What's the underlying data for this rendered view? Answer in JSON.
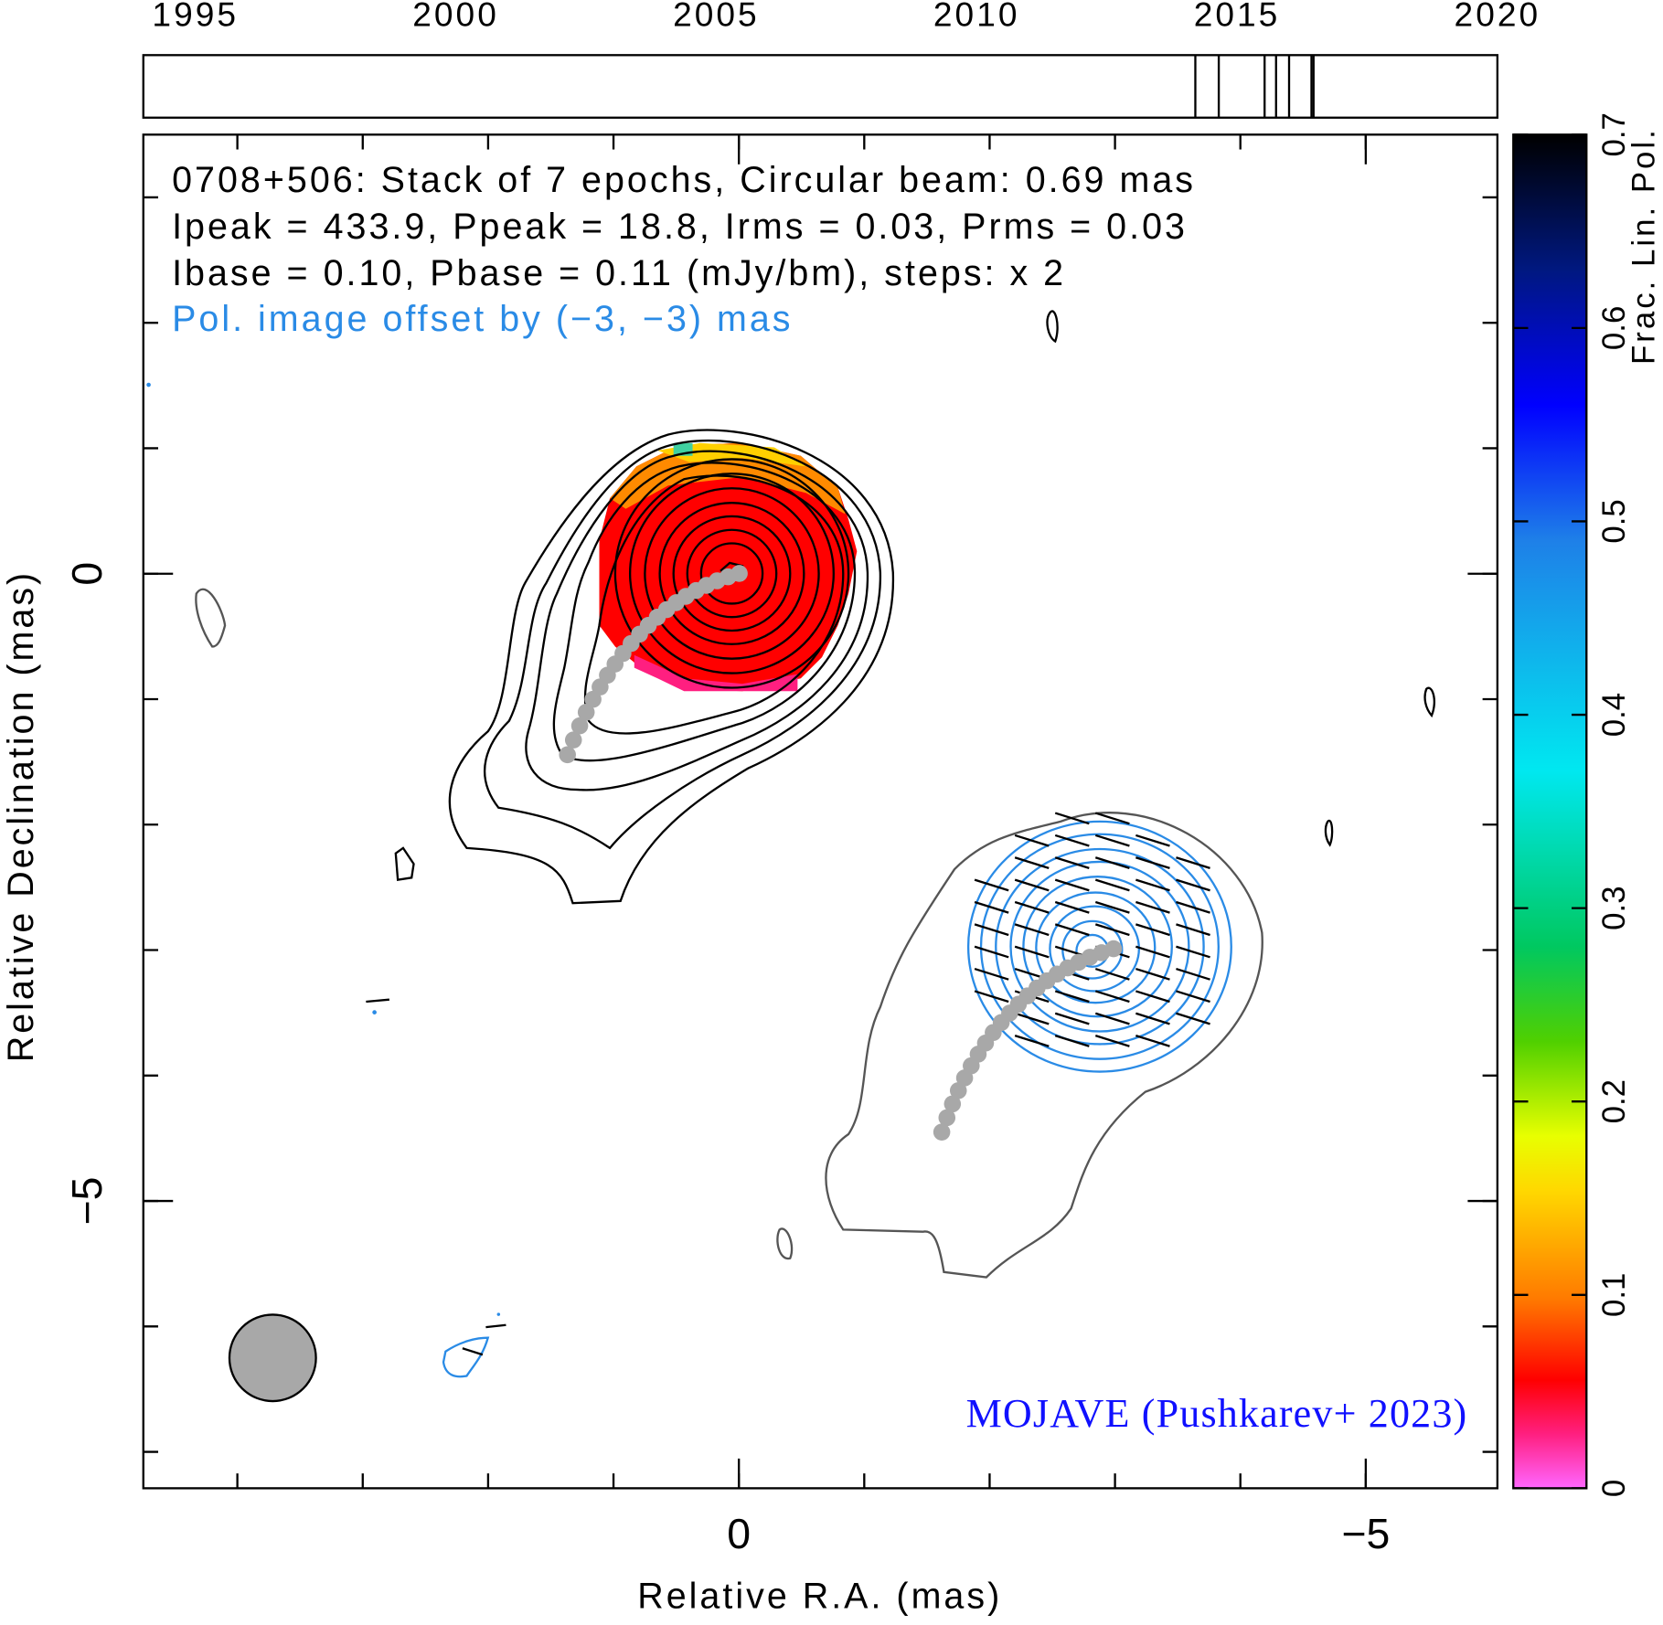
{
  "chart_data": {
    "type": "contour",
    "title": "0708+506: Stack of 7 epochs, Circular beam: 0.69 mas",
    "subtitle": [
      "Ipeak = 433.9, Ppeak = 18.8, Irms = 0.03, Prms = 0.03",
      "Ibase = 0.10, Pbase = 0.11 (mJy/bm), steps: x 2"
    ],
    "annotations": [
      "Pol. image offset by (−3, −3) mas",
      "MOJAVE (Pushkarev+ 2023)"
    ],
    "xlabel": "Relative R.A. (mas)",
    "ylabel": "Relative Declination (mas)",
    "xlim": [
      4.75,
      -6.05
    ],
    "ylim": [
      -7.29,
      3.5
    ],
    "xticks": [
      0,
      {
        "value": -5,
        "label": "−5"
      }
    ],
    "yticks": [
      0,
      {
        "value": -5,
        "label": "−5"
      }
    ],
    "xminorticks": [
      4,
      3,
      2,
      1,
      0,
      -1,
      -2,
      -3,
      -4,
      -5
    ],
    "yminorticks": [
      3,
      2,
      1,
      0,
      -1,
      -2,
      -3,
      -4,
      -5,
      -6,
      -7
    ],
    "beam_diameter": 0.69,
    "timeline": {
      "xlim": [
        1994,
        2020
      ],
      "xticks": [
        1995,
        2000,
        2005,
        2010,
        2015,
        2020
      ],
      "epochs": [
        2014.2,
        2014.65,
        2015.53,
        2015.75,
        2016.0,
        2016.43,
        2016.47
      ]
    },
    "colorbar": {
      "label": "Frac. Lin. Pol.",
      "lim": [
        0,
        0.7
      ],
      "ticks": [
        0,
        0.1,
        0.2,
        0.3,
        0.4,
        0.5,
        0.6,
        0.7
      ]
    }
  }
}
